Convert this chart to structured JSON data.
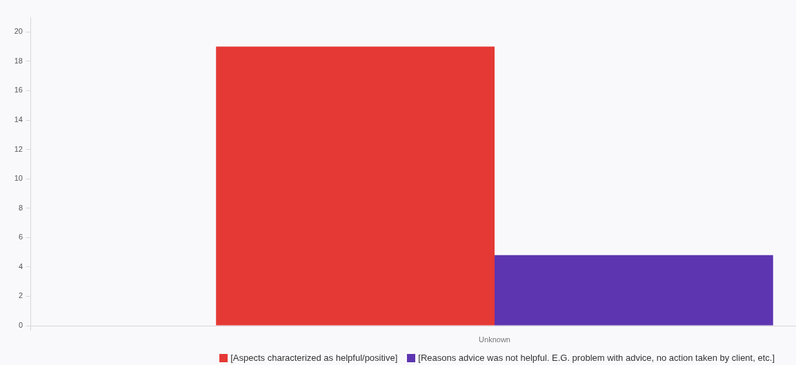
{
  "chart_data": {
    "type": "bar",
    "categories": [
      "Unknown"
    ],
    "series": [
      {
        "name": "[Aspects characterized as helpful/positive]",
        "color": "#e53935",
        "values": [
          19
        ]
      },
      {
        "name": "[Reasons advice was not helpful. E.G. problem with advice, no action taken by client, etc.]",
        "color": "#5e35b1",
        "values": [
          4.8
        ]
      }
    ],
    "ylim": [
      0,
      21
    ],
    "yticks": [
      0,
      2,
      4,
      6,
      8,
      10,
      12,
      14,
      16,
      18,
      20
    ],
    "grid": false,
    "legend": "bottom right"
  }
}
